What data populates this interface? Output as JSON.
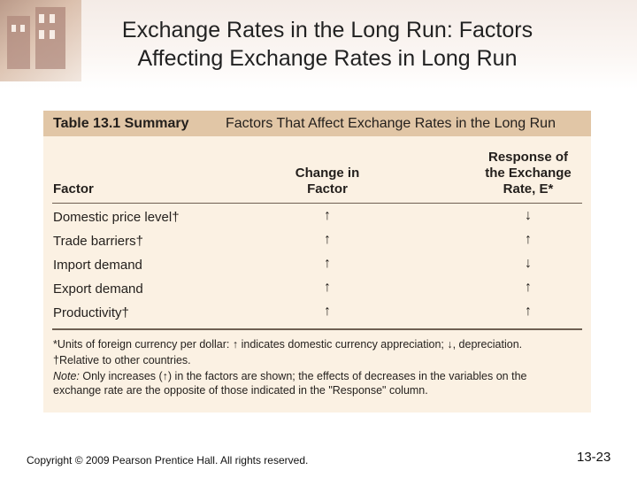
{
  "slide": {
    "title_line1": "Exchange Rates in the Long Run: Factors",
    "title_line2": "Affecting Exchange Rates in Long Run"
  },
  "table": {
    "number": "Table 13.1 Summary",
    "caption": "Factors That Affect Exchange Rates in the Long Run",
    "columns": {
      "factor": "Factor",
      "change_line1": "Change in",
      "change_line2": "Factor",
      "response_line1": "Response of",
      "response_line2": "the Exchange",
      "response_line3": "Rate, E*"
    },
    "rows": [
      {
        "factor": "Domestic price level†",
        "change": "↑",
        "response": "↓"
      },
      {
        "factor": "Trade barriers†",
        "change": "↑",
        "response": "↑"
      },
      {
        "factor": "Import demand",
        "change": "↑",
        "response": "↓"
      },
      {
        "factor": "Export demand",
        "change": "↑",
        "response": "↑"
      },
      {
        "factor": "Productivity†",
        "change": "↑",
        "response": "↑"
      }
    ],
    "notes": {
      "note1": "*Units of foreign currency per dollar: ↑ indicates domestic currency appreciation; ↓, depreciation.",
      "note2": "†Relative to other countries.",
      "note3_label": "Note:",
      "note3_text": " Only increases (↑) in the factors are shown; the effects of decreases in the variables on the",
      "note4": "exchange rate are the opposite of those indicated in the \"Response\" column."
    }
  },
  "footer": {
    "copyright": "Copyright © 2009 Pearson Prentice Hall. All rights reserved.",
    "page": "13-23"
  }
}
